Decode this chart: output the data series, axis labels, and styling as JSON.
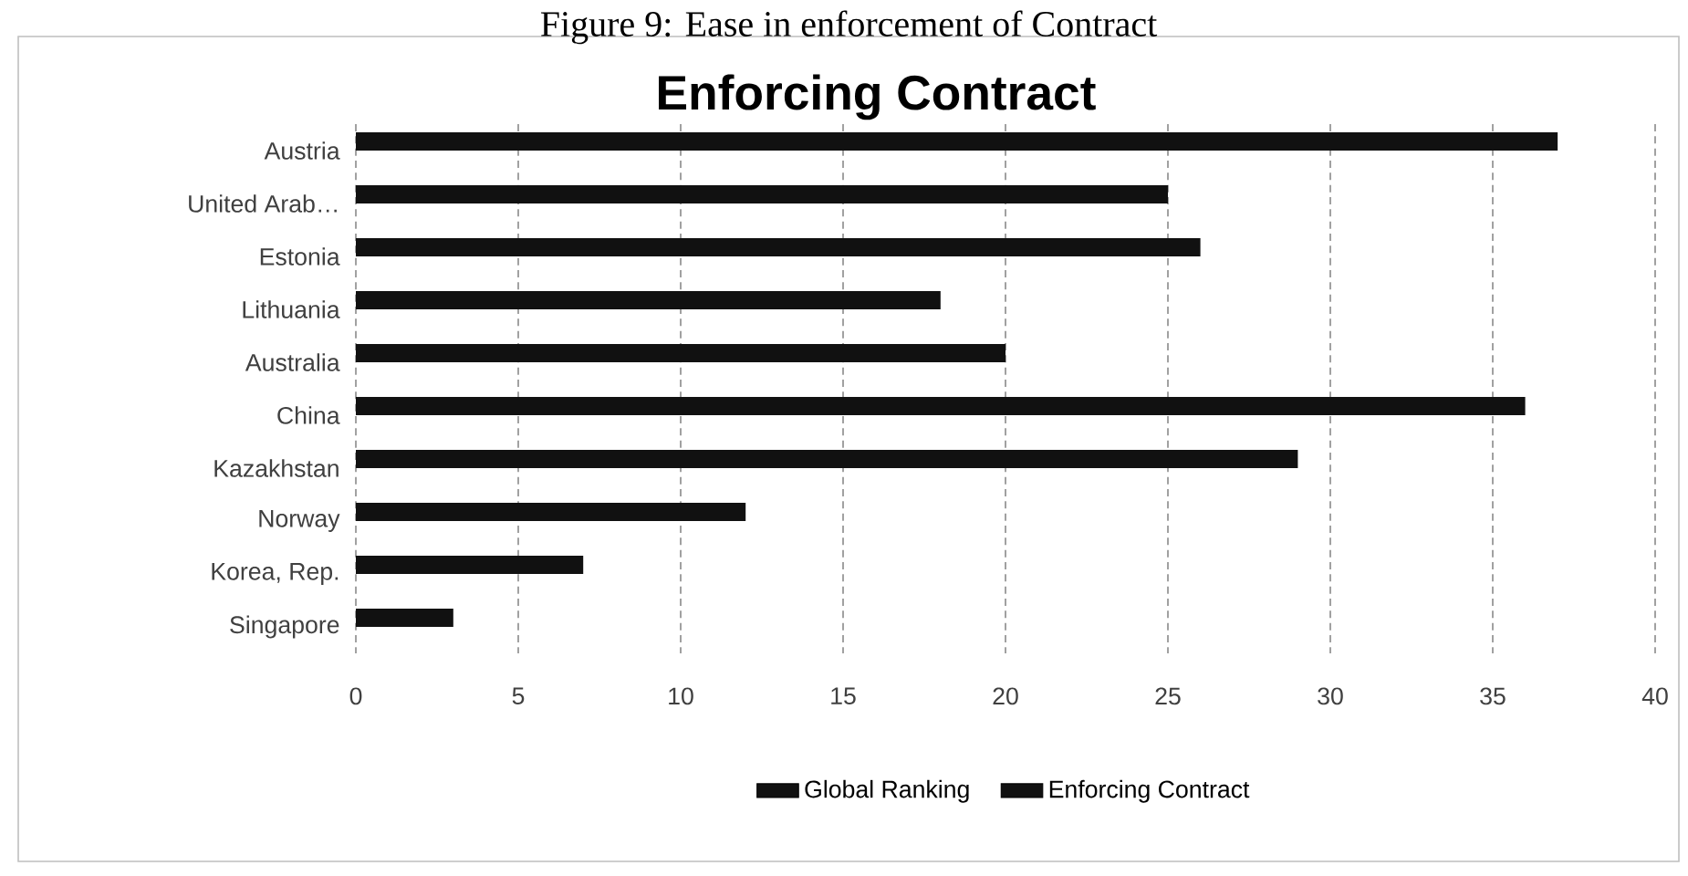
{
  "chart_data": {
    "type": "bar",
    "orientation": "horizontal",
    "title": "Enforcing Contract",
    "annotations": [
      "Figure 9: Ease in enforcement of Contract"
    ],
    "categories": [
      "Austria",
      "United Arab…",
      "Estonia",
      "Lithuania",
      "Australia",
      "China",
      "Kazakhstan",
      "Norway",
      "Korea, Rep.",
      "Singapore"
    ],
    "series": [
      {
        "name": "Global Ranking",
        "color": "#111111",
        "values": [
          null,
          null,
          null,
          null,
          null,
          null,
          null,
          null,
          null,
          null
        ]
      },
      {
        "name": "Enforcing Contract",
        "color": "#111111",
        "values": [
          37,
          25,
          26,
          18,
          20,
          36,
          29,
          12,
          7,
          3
        ]
      }
    ],
    "xlim": [
      0,
      40
    ],
    "xticks": [
      0,
      5,
      10,
      15,
      20,
      25,
      30,
      35,
      40
    ],
    "grid": "x",
    "legend": "bottom"
  }
}
